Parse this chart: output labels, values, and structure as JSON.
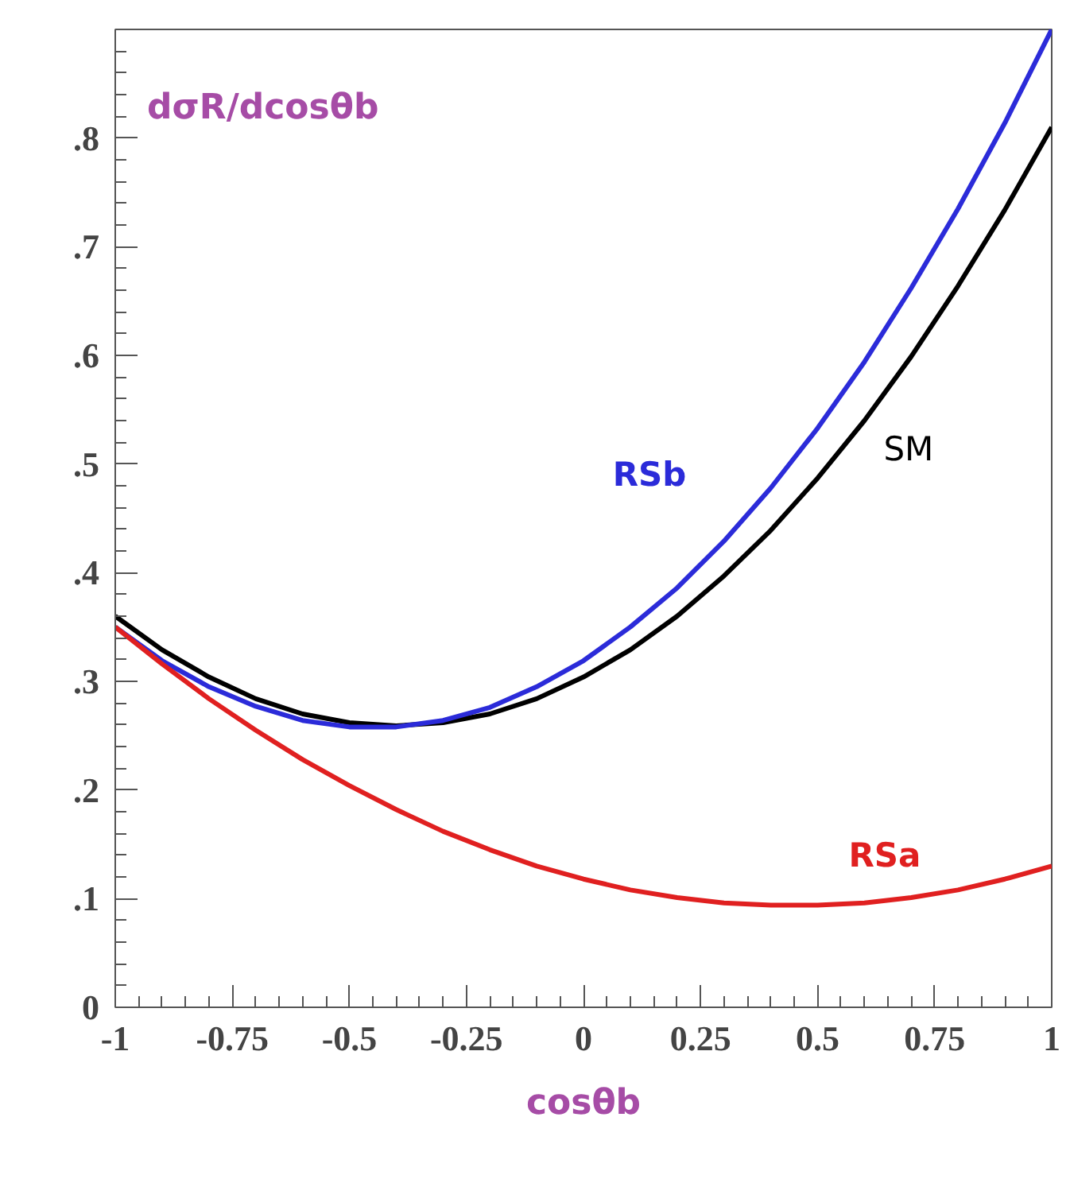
{
  "chart_data": {
    "type": "line",
    "title": "dσR/dcosθb",
    "xlabel": "cosθb",
    "x": [
      -1,
      -0.9,
      -0.8,
      -0.7,
      -0.6,
      -0.5,
      -0.4,
      -0.3,
      -0.2,
      -0.1,
      0,
      0.1,
      0.2,
      0.3,
      0.4,
      0.5,
      0.6,
      0.7,
      0.8,
      0.9,
      1
    ],
    "series": [
      {
        "name": "SM",
        "color": "#000000",
        "values": [
          0.36,
          0.329,
          0.304,
          0.284,
          0.27,
          0.262,
          0.259,
          0.262,
          0.27,
          0.284,
          0.304,
          0.329,
          0.36,
          0.397,
          0.439,
          0.487,
          0.54,
          0.599,
          0.664,
          0.734,
          0.81
        ]
      },
      {
        "name": "RSb",
        "color": "#2b2bd9",
        "values": [
          0.35,
          0.319,
          0.295,
          0.277,
          0.264,
          0.258,
          0.258,
          0.264,
          0.276,
          0.295,
          0.319,
          0.35,
          0.386,
          0.429,
          0.478,
          0.533,
          0.594,
          0.662,
          0.735,
          0.814,
          0.9
        ]
      },
      {
        "name": "RSa",
        "color": "#e02020",
        "values": [
          0.35,
          0.316,
          0.284,
          0.255,
          0.228,
          0.204,
          0.182,
          0.162,
          0.145,
          0.13,
          0.118,
          0.108,
          0.101,
          0.096,
          0.094,
          0.094,
          0.096,
          0.101,
          0.108,
          0.118,
          0.13
        ]
      }
    ],
    "xlim": [
      -1,
      1
    ],
    "ylim": [
      0,
      0.9
    ],
    "xticks": [
      -1,
      -0.75,
      -0.5,
      -0.25,
      0,
      0.25,
      0.5,
      0.75,
      1
    ],
    "yticks": [
      0,
      {
        "value": 0.1,
        "label": ".1"
      },
      {
        "value": 0.2,
        "label": ".2"
      },
      {
        "value": 0.3,
        "label": ".3"
      },
      {
        "value": 0.4,
        "label": ".4"
      },
      {
        "value": 0.5,
        "label": ".5"
      },
      {
        "value": 0.6,
        "label": ".6"
      },
      {
        "value": 0.7,
        "label": ".7"
      },
      {
        "value": 0.8,
        "label": ".8"
      }
    ],
    "grid": false,
    "marker": "none",
    "line_style": "solid"
  }
}
